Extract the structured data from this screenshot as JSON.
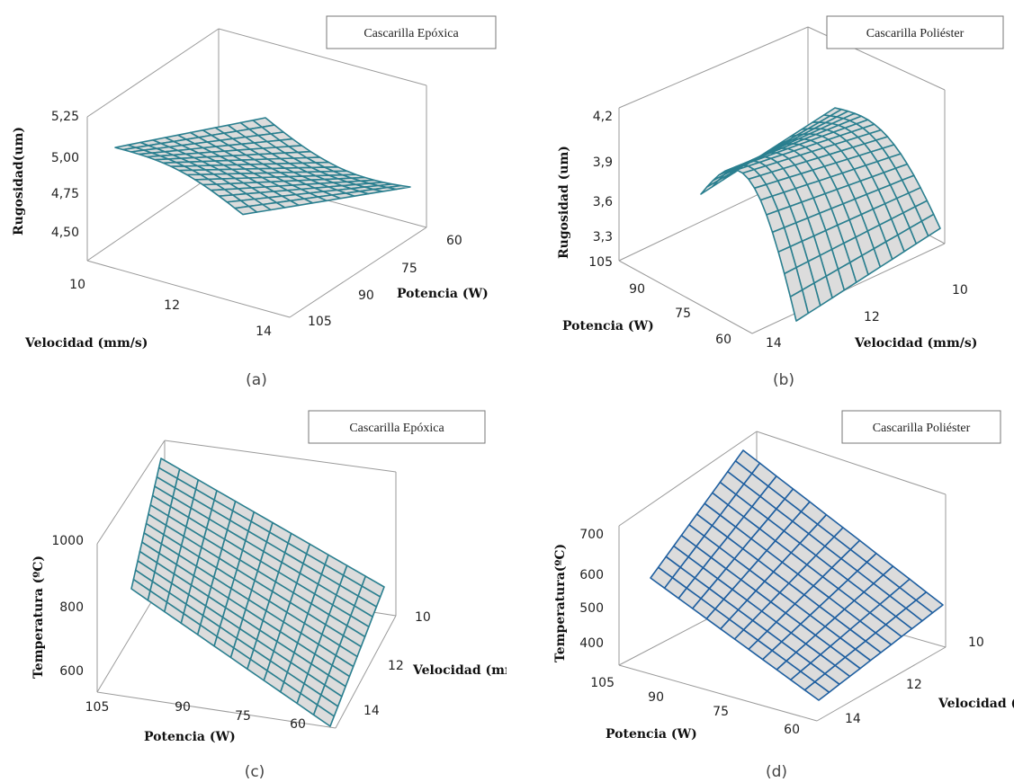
{
  "chart_data": [
    {
      "type": "surface3d",
      "legend": "Cascarilla  Epóxica",
      "caption": "(a)",
      "zlabel": "Rugosidad(um)",
      "xlabel": "Velocidad (mm/s)",
      "ylabel": "Potencia (W)",
      "zticks": [
        "4,50",
        "4,75",
        "5,00",
        "5,25"
      ],
      "xticks": [
        "10",
        "12",
        "14"
      ],
      "yticks": [
        "60",
        "75",
        "90",
        "105"
      ],
      "zlim": [
        4.4,
        5.3
      ],
      "mesh_color": "#2a7f8f"
    },
    {
      "type": "surface3d",
      "legend": "Cascarilla  Poliéster",
      "caption": "(b)",
      "zlabel": "Rugosidad (um)",
      "xlabel": "Velocidad (mm/s)",
      "ylabel": "Potencia (W)",
      "zticks": [
        "3,3",
        "3,6",
        "3,9",
        "4,2"
      ],
      "xticks": [
        "10",
        "12",
        "14"
      ],
      "yticks": [
        "105",
        "90",
        "75",
        "60"
      ],
      "zlim": [
        3.2,
        4.25
      ],
      "mesh_color": "#2a7f8f"
    },
    {
      "type": "surface3d",
      "legend": "Cascarilla  Epóxica",
      "caption": "(c)",
      "zlabel": "Temperatura (ºC)",
      "xlabel": "Velocidad (mm/s)",
      "ylabel": "Potencia (W)",
      "zticks": [
        "600",
        "800",
        "1000"
      ],
      "xticks": [
        "10",
        "12",
        "14"
      ],
      "yticks": [
        "105",
        "90",
        "75",
        "60"
      ],
      "zlim": [
        550,
        1150
      ],
      "mesh_color": "#2a7f8f"
    },
    {
      "type": "surface3d",
      "legend": "Cascarilla  Poliéster",
      "caption": "(d)",
      "zlabel": "Temperatura(ºC)",
      "xlabel": "Velocidad (mm/s)",
      "ylabel": "Potencia (W)",
      "zticks": [
        "400",
        "500",
        "600",
        "700"
      ],
      "xticks": [
        "10",
        "12",
        "14"
      ],
      "yticks": [
        "105",
        "90",
        "75",
        "60"
      ],
      "zlim": [
        350,
        780
      ],
      "mesh_color": "#1f5fa0"
    }
  ]
}
